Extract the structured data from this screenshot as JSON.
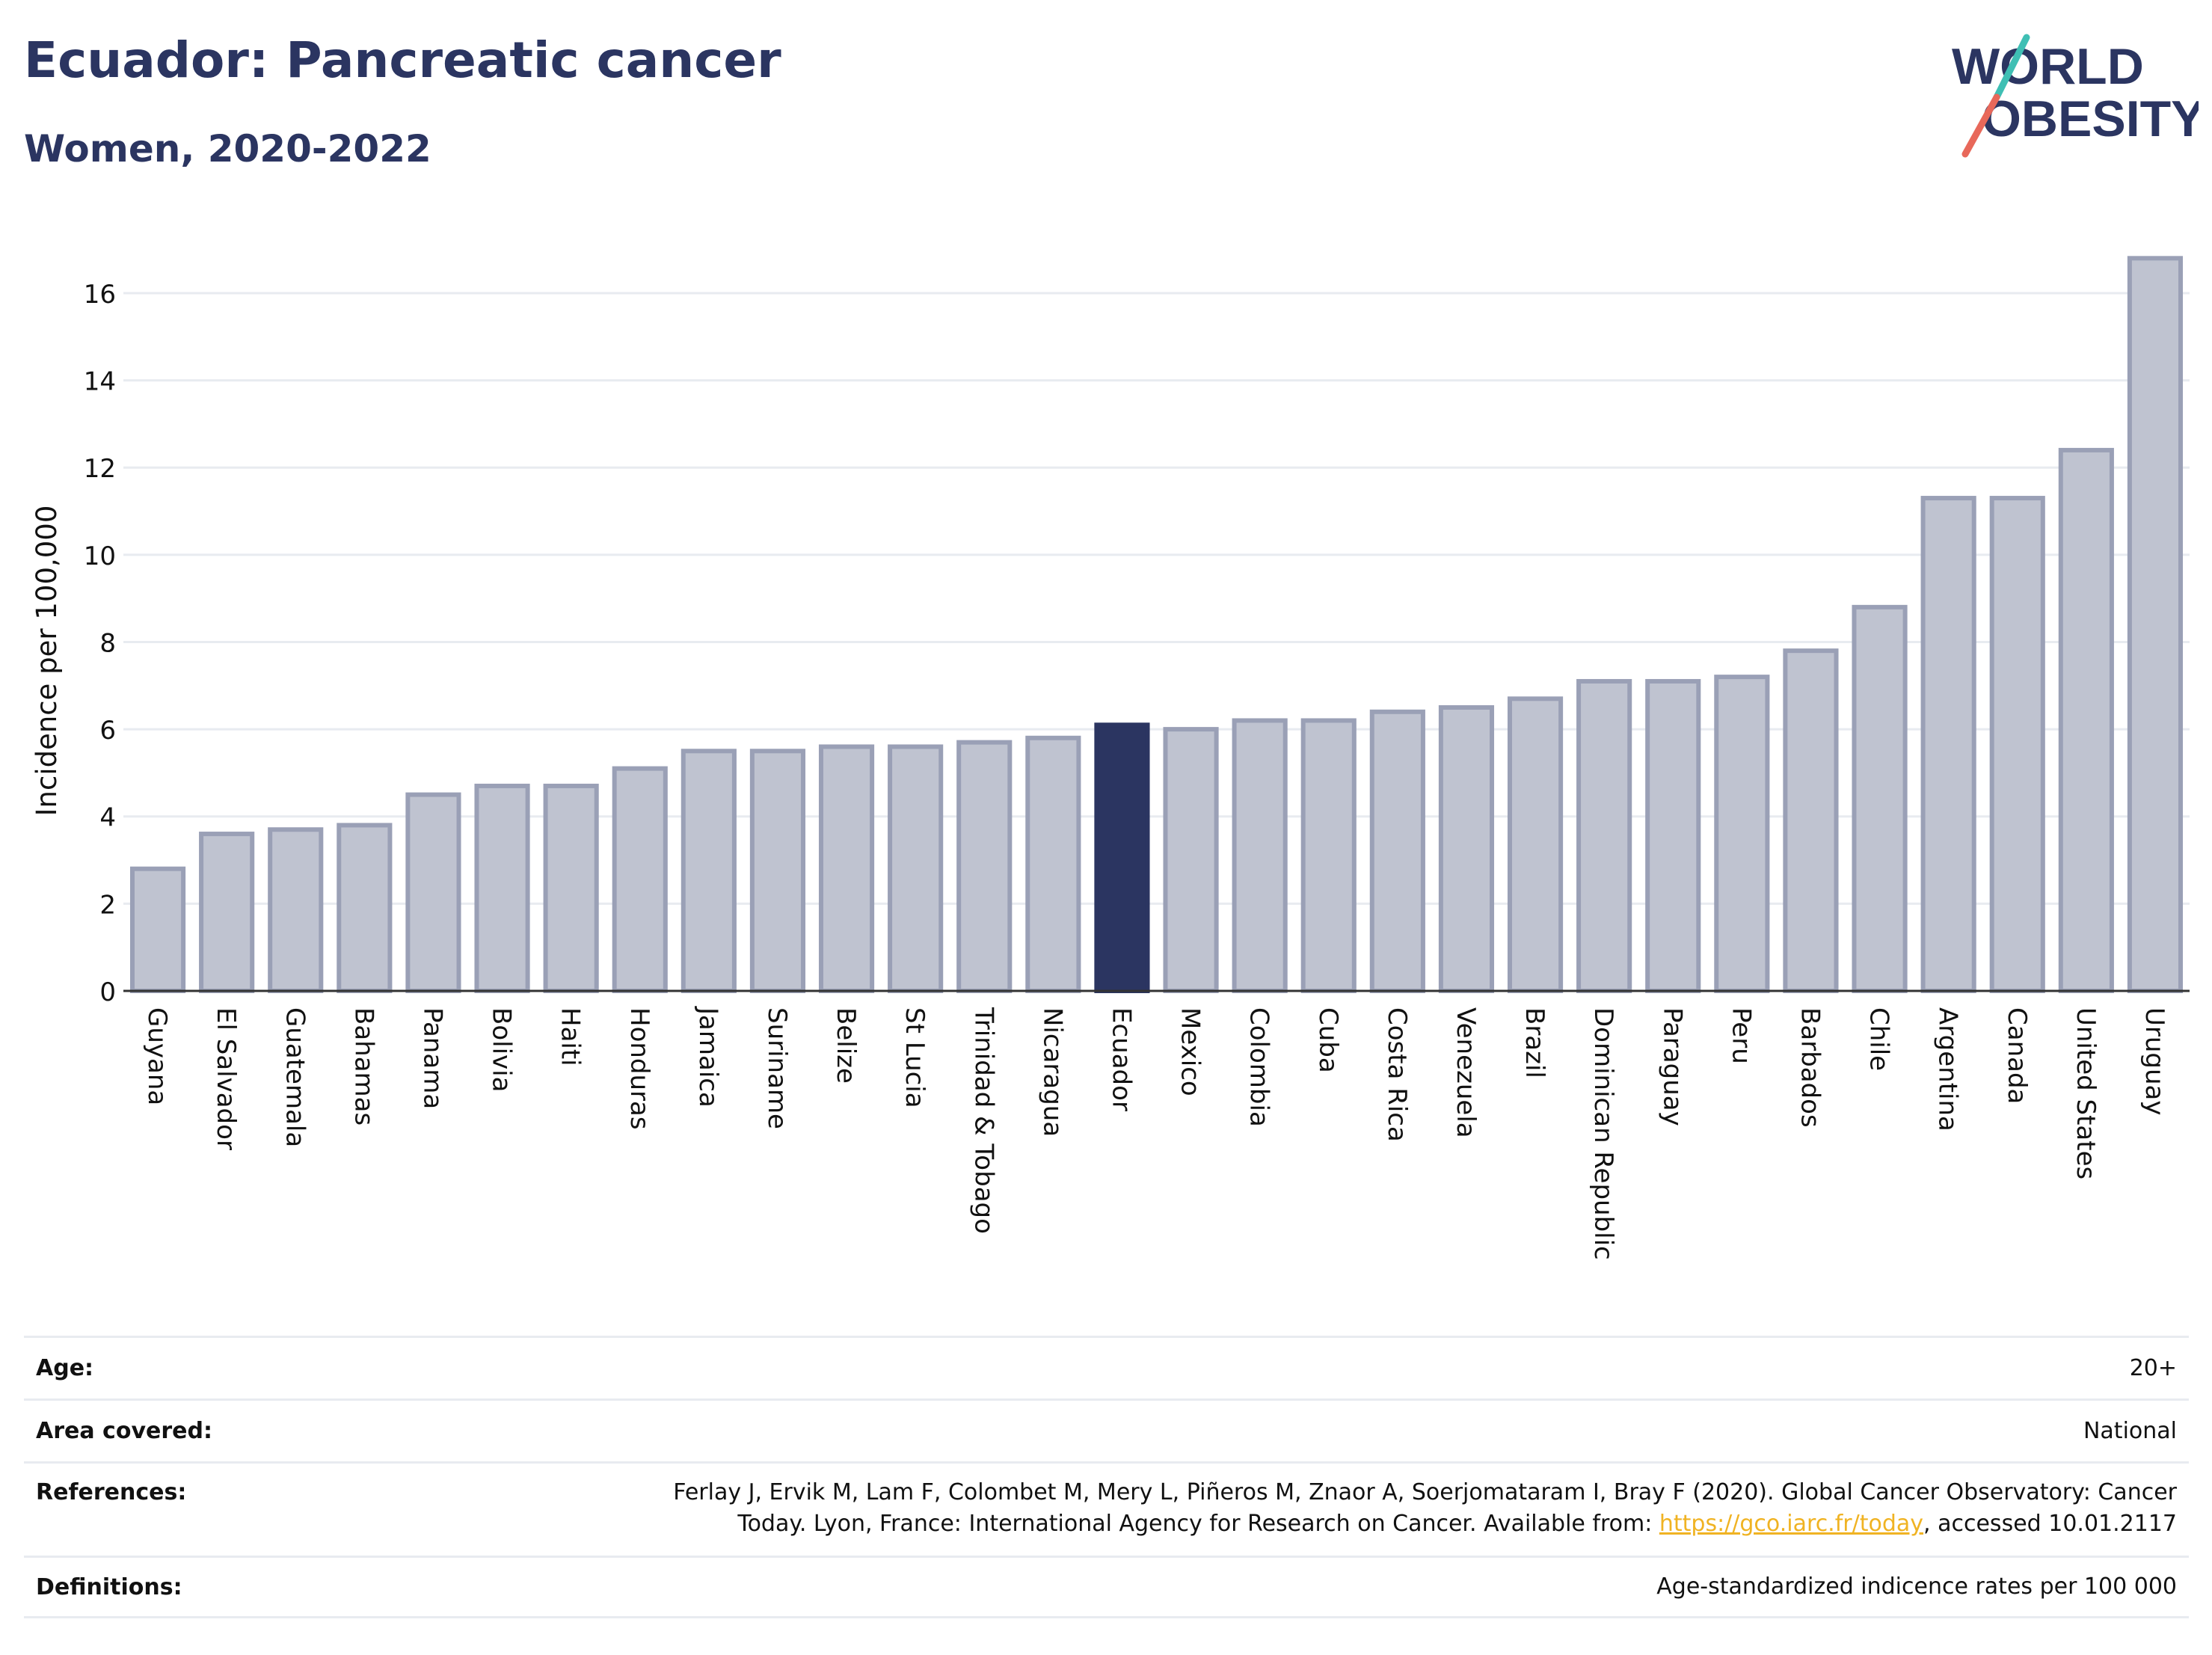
{
  "header": {
    "title": "Ecuador: Pancreatic cancer",
    "subtitle": "Women, 2020-2022"
  },
  "logo": {
    "line1": "WORLD",
    "line2": "OBESITY",
    "name": "world-obesity-logo"
  },
  "colors": {
    "highlight": "#2b3561",
    "bar_fill": "#bfc3d0",
    "bar_stroke": "#9aa0b6",
    "grid": "#e8ebf0",
    "link": "#f0b323"
  },
  "chart_data": {
    "type": "bar",
    "ylabel": "Incidence per 100,000",
    "xlabel": "",
    "ylim": [
      0,
      17.2
    ],
    "yticks": [
      0,
      2,
      4,
      6,
      8,
      10,
      12,
      14,
      16
    ],
    "grid": true,
    "highlight": "Ecuador",
    "categories": [
      "Guyana",
      "El Salvador",
      "Guatemala",
      "Bahamas",
      "Panama",
      "Bolivia",
      "Haiti",
      "Honduras",
      "Jamaica",
      "Suriname",
      "Belize",
      "St Lucia",
      "Trinidad & Tobago",
      "Nicaragua",
      "Ecuador",
      "Mexico",
      "Colombia",
      "Cuba",
      "Costa Rica",
      "Venezuela",
      "Brazil",
      "Dominican Republic",
      "Paraguay",
      "Peru",
      "Barbados",
      "Chile",
      "Argentina",
      "Canada",
      "United States",
      "Uruguay"
    ],
    "values": [
      2.8,
      3.6,
      3.7,
      3.8,
      4.5,
      4.7,
      4.7,
      5.1,
      5.5,
      5.5,
      5.6,
      5.6,
      5.7,
      5.8,
      6.1,
      6.0,
      6.2,
      6.2,
      6.4,
      6.5,
      6.7,
      7.1,
      7.1,
      7.2,
      7.8,
      8.8,
      11.3,
      11.3,
      12.4,
      16.8
    ]
  },
  "meta": {
    "age": {
      "label": "Age:",
      "value": "20+"
    },
    "area": {
      "label": "Area covered:",
      "value": "National"
    },
    "references": {
      "label": "References:",
      "line1": "Ferlay J, Ervik M, Lam F, Colombet M, Mery L, Piñeros M, Znaor A, Soerjomataram I, Bray F (2020). Global Cancer Observatory: Cancer",
      "line2_pre": "Today. Lyon, France: International Agency for Research on Cancer. Available from: ",
      "link": "https://gco.iarc.fr/today",
      "line2_post": ", accessed 10.01.2117"
    },
    "definitions": {
      "label": "Definitions:",
      "value": "Age-standardized indicence rates per 100 000"
    }
  }
}
